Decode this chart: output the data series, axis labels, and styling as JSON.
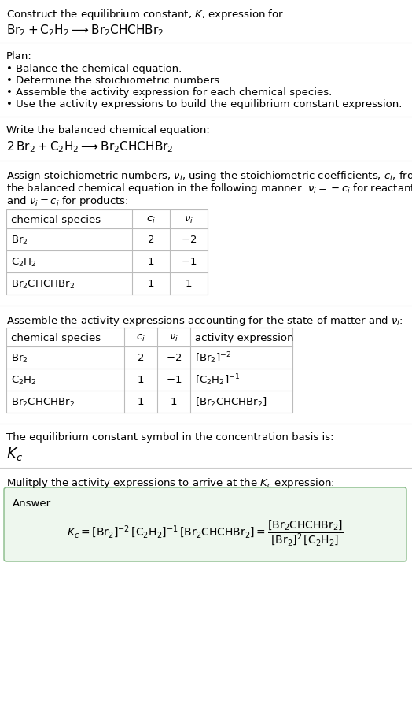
{
  "title_line1": "Construct the equilibrium constant, $K$, expression for:",
  "title_line2": "$\\mathrm{Br_2 + C_2H_2 \\longrightarrow Br_2CHCHBr_2}$",
  "plan_header": "Plan:",
  "plan_items": [
    "• Balance the chemical equation.",
    "• Determine the stoichiometric numbers.",
    "• Assemble the activity expression for each chemical species.",
    "• Use the activity expressions to build the equilibrium constant expression."
  ],
  "balanced_header": "Write the balanced chemical equation:",
  "balanced_eq": "$\\mathrm{2\\,Br_2 + C_2H_2 \\longrightarrow Br_2CHCHBr_2}$",
  "stoich_intro_parts": [
    [
      "Assign stoichiometric numbers, ",
      "$\\nu_i$",
      ", using the stoichiometric coefficients, ",
      "$c_i$",
      ", from"
    ],
    [
      "the balanced chemical equation in the following manner: ",
      "$\\nu_i = -c_i$",
      " for reactants"
    ],
    [
      "and ",
      "$\\nu_i = c_i$",
      " for products:"
    ]
  ],
  "table1_headers": [
    "chemical species",
    "$c_i$",
    "$\\nu_i$"
  ],
  "table1_rows": [
    [
      "$\\mathrm{Br_2}$",
      "2",
      "$-2$"
    ],
    [
      "$\\mathrm{C_2H_2}$",
      "1",
      "$-1$"
    ],
    [
      "$\\mathrm{Br_2CHCHBr_2}$",
      "1",
      "1"
    ]
  ],
  "assemble_intro_parts": [
    [
      "Assemble the activity expressions accounting for the state of matter and ",
      "$\\nu_i$",
      ":"
    ]
  ],
  "table2_headers": [
    "chemical species",
    "$c_i$",
    "$\\nu_i$",
    "activity expression"
  ],
  "table2_rows": [
    [
      "$\\mathrm{Br_2}$",
      "2",
      "$-2$",
      "$[\\mathrm{Br_2}]^{-2}$"
    ],
    [
      "$\\mathrm{C_2H_2}$",
      "1",
      "$-1$",
      "$[\\mathrm{C_2H_2}]^{-1}$"
    ],
    [
      "$\\mathrm{Br_2CHCHBr_2}$",
      "1",
      "1",
      "$[\\mathrm{Br_2CHCHBr_2}]$"
    ]
  ],
  "kc_symbol_text": "The equilibrium constant symbol in the concentration basis is:",
  "kc_symbol": "$K_c$",
  "multiply_text_parts": [
    [
      "Mulitply the activity expressions to arrive at the ",
      "$K_c$",
      " expression:"
    ]
  ],
  "answer_label": "Answer:",
  "answer_eq": "$K_c = [\\mathrm{Br_2}]^{-2}\\,[\\mathrm{C_2H_2}]^{-1}\\,[\\mathrm{Br_2CHCHBr_2}] = \\dfrac{[\\mathrm{Br_2CHCHBr_2}]}{[\\mathrm{Br_2}]^2\\,[\\mathrm{C_2H_2}]}$",
  "bg_color": "#ffffff",
  "table_border_color": "#bbbbbb",
  "answer_box_color": "#eef7ee",
  "answer_box_border": "#88bb88",
  "text_color": "#000000",
  "font_size": 9.5,
  "table_font_size": 9.5
}
